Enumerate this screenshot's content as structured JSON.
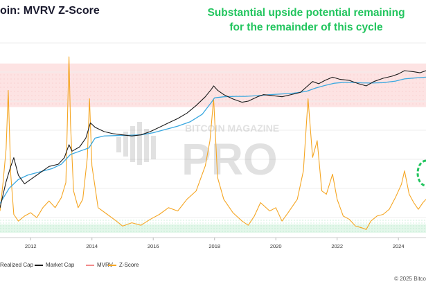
{
  "title": "oin: MVRV Z-Score",
  "annotation": {
    "line1": "Substantial upside potential remaining",
    "line2": "for the remainder of this cycle"
  },
  "watermark": {
    "top": "BITCOIN MAGAZINE",
    "bottom": "PRO"
  },
  "copyright": "© 2025 Bitco",
  "colors": {
    "market_cap": "#1a1a1a",
    "realized_cap": "#3aa8e0",
    "z_score": "#f5a623",
    "mvrv": "#f28b8b",
    "red_band": "#fde3e3",
    "green_band": "#e3f7ea",
    "green_dot": "#22c55e"
  },
  "chart_data": {
    "type": "line",
    "x_ticks": [
      "2012",
      "2014",
      "2016",
      "2018",
      "2020",
      "2022",
      "2024"
    ],
    "xlim": [
      2011.0,
      2024.9
    ],
    "legend": [
      {
        "key": "realized",
        "label": "Realized Cap"
      },
      {
        "key": "market",
        "label": "Market Cap"
      },
      {
        "key": "mvrv",
        "label": "MVRV"
      },
      {
        "key": "z",
        "label": "Z-Score"
      }
    ],
    "bands": {
      "overvalued_z": [
        7,
        9.6
      ],
      "undervalued_z": [
        -0.5,
        0
      ]
    },
    "series": [
      {
        "name": "Market Cap",
        "key": "market",
        "x": [
          2011.0,
          2011.2,
          2011.35,
          2011.45,
          2011.6,
          2011.8,
          2012.0,
          2012.3,
          2012.6,
          2012.9,
          2013.1,
          2013.25,
          2013.35,
          2013.6,
          2013.8,
          2013.95,
          2014.1,
          2014.4,
          2014.7,
          2015.0,
          2015.3,
          2015.6,
          2015.9,
          2016.2,
          2016.5,
          2016.8,
          2017.1,
          2017.4,
          2017.7,
          2017.9,
          2017.97,
          2018.1,
          2018.3,
          2018.6,
          2018.9,
          2019.1,
          2019.4,
          2019.6,
          2019.9,
          2020.2,
          2020.5,
          2020.8,
          2021.0,
          2021.2,
          2021.4,
          2021.6,
          2021.85,
          2022.1,
          2022.4,
          2022.7,
          2022.95,
          2023.2,
          2023.5,
          2023.8,
          2024.0,
          2024.2,
          2024.5,
          2024.7,
          2024.9
        ],
        "y": [
          6.0,
          7.2,
          7.9,
          8.3,
          7.5,
          7.1,
          7.3,
          7.6,
          7.9,
          8.0,
          8.3,
          8.9,
          8.6,
          8.8,
          9.2,
          9.9,
          9.7,
          9.5,
          9.4,
          9.35,
          9.3,
          9.35,
          9.5,
          9.7,
          9.9,
          10.1,
          10.35,
          10.7,
          11.1,
          11.45,
          11.6,
          11.4,
          11.2,
          11.0,
          10.85,
          10.9,
          11.1,
          11.2,
          11.15,
          11.1,
          11.2,
          11.3,
          11.55,
          11.8,
          11.7,
          11.85,
          12.0,
          11.9,
          11.85,
          11.7,
          11.6,
          11.8,
          11.95,
          12.05,
          12.15,
          12.3,
          12.25,
          12.2,
          12.3
        ]
      },
      {
        "name": "Realized Cap",
        "key": "realized",
        "x": [
          2011.0,
          2011.3,
          2011.6,
          2011.9,
          2012.3,
          2012.7,
          2013.0,
          2013.3,
          2013.6,
          2013.9,
          2014.1,
          2014.4,
          2014.8,
          2015.2,
          2015.6,
          2016.0,
          2016.4,
          2016.8,
          2017.2,
          2017.6,
          2017.9,
          2018.0,
          2018.3,
          2018.7,
          2019.0,
          2019.4,
          2019.8,
          2020.2,
          2020.6,
          2021.0,
          2021.3,
          2021.6,
          2021.9,
          2022.2,
          2022.5,
          2022.8,
          2023.1,
          2023.5,
          2023.9,
          2024.2,
          2024.5,
          2024.9
        ],
        "y": [
          6.2,
          6.9,
          7.3,
          7.5,
          7.65,
          7.8,
          8.0,
          8.45,
          8.6,
          8.75,
          9.2,
          9.3,
          9.32,
          9.33,
          9.35,
          9.45,
          9.6,
          9.75,
          9.95,
          10.3,
          10.85,
          11.05,
          11.1,
          11.12,
          11.12,
          11.15,
          11.2,
          11.23,
          11.27,
          11.35,
          11.5,
          11.62,
          11.72,
          11.76,
          11.76,
          11.74,
          11.73,
          11.75,
          11.82,
          11.92,
          11.96,
          12.0
        ]
      },
      {
        "name": "Z-Score",
        "key": "z",
        "x": [
          2011.0,
          2011.1,
          2011.2,
          2011.27,
          2011.35,
          2011.45,
          2011.6,
          2011.8,
          2012.0,
          2012.2,
          2012.4,
          2012.6,
          2012.8,
          2013.0,
          2013.15,
          2013.25,
          2013.3,
          2013.4,
          2013.55,
          2013.7,
          2013.85,
          2013.92,
          2014.0,
          2014.2,
          2014.5,
          2014.8,
          2015.0,
          2015.3,
          2015.6,
          2015.9,
          2016.2,
          2016.5,
          2016.8,
          2017.1,
          2017.4,
          2017.7,
          2017.85,
          2017.97,
          2018.1,
          2018.3,
          2018.6,
          2018.9,
          2019.1,
          2019.3,
          2019.5,
          2019.8,
          2020.0,
          2020.2,
          2020.4,
          2020.7,
          2020.9,
          2021.05,
          2021.2,
          2021.35,
          2021.5,
          2021.65,
          2021.85,
          2022.0,
          2022.2,
          2022.4,
          2022.6,
          2022.8,
          2022.95,
          2023.1,
          2023.3,
          2023.5,
          2023.7,
          2023.9,
          2024.1,
          2024.2,
          2024.35,
          2024.5,
          2024.65,
          2024.8,
          2024.9
        ],
        "y": [
          0.8,
          2.5,
          4.5,
          8.0,
          3.0,
          0.6,
          0.2,
          0.5,
          0.7,
          0.4,
          1.0,
          1.4,
          1.0,
          1.6,
          2.5,
          10.0,
          6.0,
          2.0,
          1.0,
          1.5,
          4.0,
          7.5,
          3.5,
          1.0,
          0.6,
          0.2,
          -0.1,
          0.1,
          -0.05,
          0.3,
          0.6,
          1.0,
          0.8,
          1.5,
          2.0,
          3.5,
          5.0,
          7.5,
          2.8,
          1.5,
          0.7,
          0.2,
          -0.05,
          0.5,
          1.3,
          0.8,
          1.0,
          0.2,
          0.7,
          1.5,
          3.2,
          7.5,
          4.0,
          5.0,
          2.0,
          1.8,
          3.0,
          1.5,
          0.5,
          0.3,
          -0.1,
          -0.2,
          -0.3,
          0.2,
          0.5,
          0.6,
          0.9,
          1.6,
          2.4,
          3.2,
          1.8,
          1.3,
          0.9,
          1.3,
          1.5
        ]
      },
      {
        "name": "MVRV",
        "key": "mvrv",
        "x": [],
        "y": []
      }
    ]
  }
}
